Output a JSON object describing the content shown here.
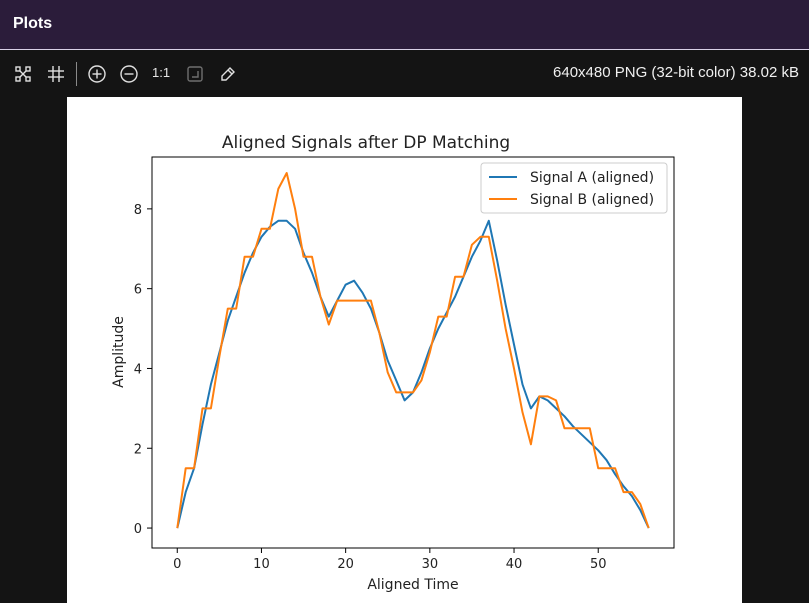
{
  "panel": {
    "title": "Plots"
  },
  "toolbar": {
    "zoom_ratio": "1:1",
    "image_info": "640x480 PNG (32-bit color) 38.02 kB",
    "icons": [
      "fit-screen-icon",
      "crop-icon",
      "zoom-in-icon",
      "zoom-out-icon",
      "actual-size-icon",
      "background-toggle-icon",
      "color-picker-icon"
    ]
  },
  "chart_data": {
    "type": "line",
    "title": "Aligned Signals after DP Matching",
    "xlabel": "Aligned Time",
    "ylabel": "Amplitude",
    "xlim": [
      -3,
      59
    ],
    "ylim": [
      -0.5,
      9.3
    ],
    "xticks": [
      0,
      10,
      20,
      30,
      40,
      50
    ],
    "yticks": [
      0,
      2,
      4,
      6,
      8
    ],
    "grid": false,
    "legend_position": "top-right",
    "series": [
      {
        "name": "Signal A (aligned)",
        "color": "#1f77b4",
        "x": [
          0,
          1,
          2,
          3,
          4,
          5,
          6,
          7,
          8,
          9,
          10,
          11,
          12,
          13,
          14,
          15,
          16,
          17,
          18,
          19,
          20,
          21,
          22,
          23,
          24,
          25,
          26,
          27,
          28,
          29,
          30,
          31,
          32,
          33,
          34,
          35,
          36,
          37,
          38,
          39,
          40,
          41,
          42,
          43,
          44,
          45,
          46,
          47,
          48,
          49,
          50,
          51,
          52,
          53,
          54,
          55,
          56
        ],
        "y": [
          0,
          0.9,
          1.5,
          2.6,
          3.6,
          4.4,
          5.2,
          5.8,
          6.4,
          6.9,
          7.3,
          7.55,
          7.7,
          7.7,
          7.5,
          6.9,
          6.4,
          5.8,
          5.3,
          5.7,
          6.1,
          6.2,
          5.9,
          5.5,
          4.9,
          4.2,
          3.7,
          3.2,
          3.4,
          3.9,
          4.5,
          5.0,
          5.4,
          5.8,
          6.3,
          6.8,
          7.2,
          7.7,
          6.7,
          5.6,
          4.6,
          3.6,
          3.0,
          3.3,
          3.2,
          3.0,
          2.8,
          2.55,
          2.35,
          2.15,
          1.95,
          1.7,
          1.35,
          1.05,
          0.8,
          0.45,
          0
        ]
      },
      {
        "name": "Signal B (aligned)",
        "color": "#ff7f0e",
        "x": [
          0,
          1,
          2,
          3,
          4,
          5,
          6,
          7,
          8,
          9,
          10,
          11,
          12,
          13,
          14,
          15,
          16,
          17,
          18,
          19,
          20,
          21,
          22,
          23,
          24,
          25,
          26,
          27,
          28,
          29,
          30,
          31,
          32,
          33,
          34,
          35,
          36,
          37,
          38,
          39,
          40,
          41,
          42,
          43,
          44,
          45,
          46,
          47,
          48,
          49,
          50,
          51,
          52,
          53,
          54,
          55,
          56
        ],
        "y": [
          0,
          1.5,
          1.5,
          3.0,
          3.0,
          4.3,
          5.5,
          5.5,
          6.8,
          6.8,
          7.5,
          7.5,
          8.5,
          8.9,
          8.0,
          6.8,
          6.8,
          5.8,
          5.1,
          5.7,
          5.7,
          5.7,
          5.7,
          5.7,
          4.9,
          3.9,
          3.4,
          3.4,
          3.4,
          3.7,
          4.4,
          5.3,
          5.3,
          6.3,
          6.3,
          7.1,
          7.3,
          7.3,
          6.2,
          5.0,
          4.0,
          2.9,
          2.1,
          3.3,
          3.3,
          3.2,
          2.5,
          2.5,
          2.5,
          2.5,
          1.5,
          1.5,
          1.5,
          0.9,
          0.9,
          0.6,
          0
        ]
      }
    ]
  }
}
